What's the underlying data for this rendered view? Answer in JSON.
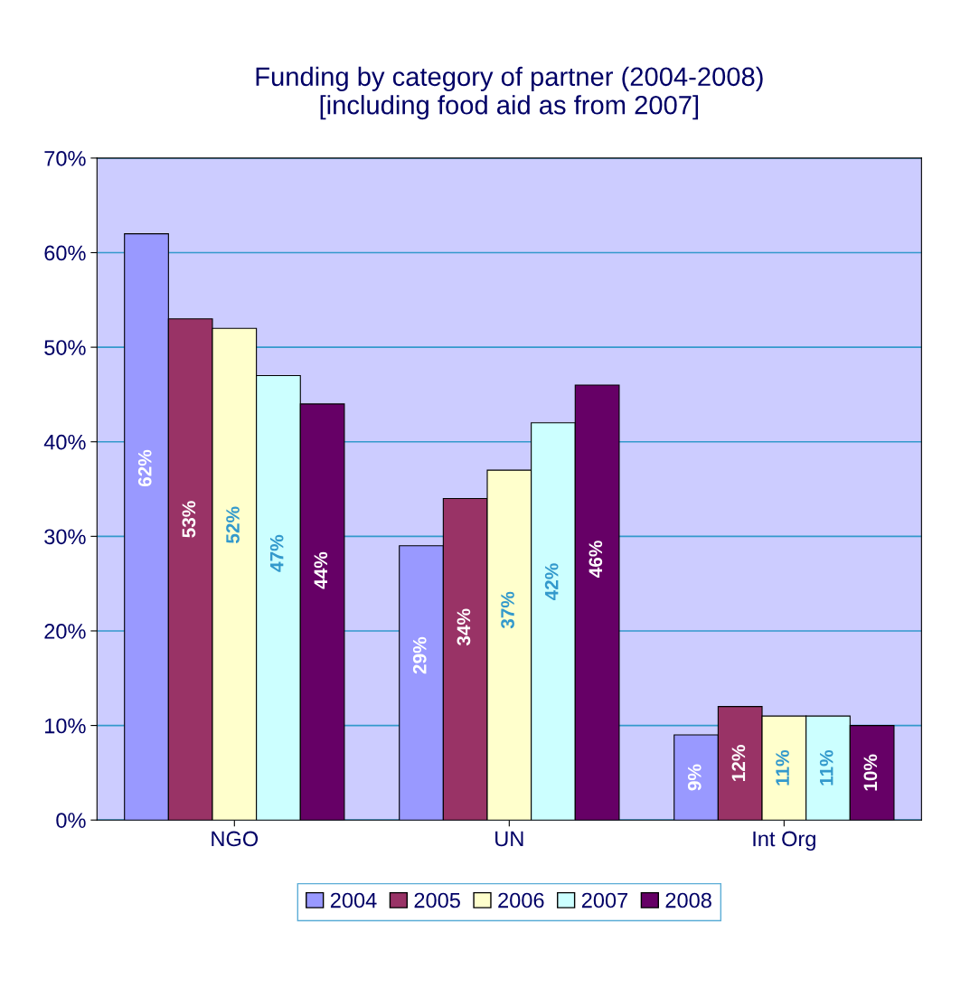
{
  "chart_data": {
    "type": "bar",
    "title": "Funding by category of partner (2004-2008)\n[including food aid as from 2007]",
    "categories": [
      "NGO",
      "UN",
      "Int Org"
    ],
    "series": [
      {
        "name": "2004",
        "color": "#9999ff",
        "values": [
          62,
          29,
          9
        ],
        "value_labels": [
          "62%",
          "29%",
          "9%"
        ]
      },
      {
        "name": "2005",
        "color": "#993366",
        "values": [
          53,
          34,
          12
        ],
        "value_labels": [
          "53%",
          "34%",
          "12%"
        ]
      },
      {
        "name": "2006",
        "color": "#ffffcc",
        "values": [
          52,
          37,
          11
        ],
        "value_labels": [
          "52%",
          "37%",
          "11%"
        ]
      },
      {
        "name": "2007",
        "color": "#ccffff",
        "values": [
          47,
          42,
          11
        ],
        "value_labels": [
          "47%",
          "42%",
          "11%"
        ]
      },
      {
        "name": "2008",
        "color": "#660066",
        "values": [
          44,
          46,
          10
        ],
        "value_labels": [
          "44%",
          "46%",
          "10%"
        ]
      }
    ],
    "ylim": [
      0,
      70
    ],
    "yticks": [
      {
        "value": 0,
        "label": "0%"
      },
      {
        "value": 10,
        "label": "10%"
      },
      {
        "value": 20,
        "label": "20%"
      },
      {
        "value": 30,
        "label": "30%"
      },
      {
        "value": 40,
        "label": "40%"
      },
      {
        "value": 50,
        "label": "50%"
      },
      {
        "value": 60,
        "label": "60%"
      },
      {
        "value": 70,
        "label": "70%"
      }
    ],
    "grid": "y",
    "legend": "bottom"
  }
}
